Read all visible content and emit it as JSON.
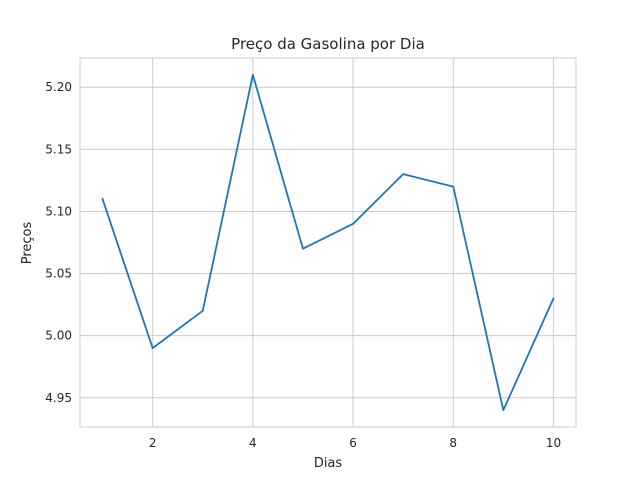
{
  "chart_data": {
    "type": "line",
    "title": "Preço da Gasolina por Dia",
    "xlabel": "Dias",
    "ylabel": "Preços",
    "x": [
      1,
      2,
      3,
      4,
      5,
      6,
      7,
      8,
      9,
      10
    ],
    "series": [
      {
        "values": [
          5.11,
          4.99,
          5.02,
          5.21,
          5.07,
          5.09,
          5.13,
          5.12,
          4.94,
          5.03
        ],
        "color": "#1f77b4"
      }
    ],
    "xlim": [
      0.55,
      10.45
    ],
    "ylim": [
      4.9265,
      5.2235
    ],
    "xticks": [
      2,
      4,
      6,
      8,
      10
    ],
    "xtick_labels": [
      "2",
      "4",
      "6",
      "8",
      "10"
    ],
    "yticks": [
      4.95,
      5.0,
      5.05,
      5.1,
      5.15,
      5.2
    ],
    "ytick_labels": [
      "4.95",
      "5.00",
      "5.05",
      "5.10",
      "5.15",
      "5.20"
    ],
    "grid": true,
    "colors": {
      "grid": "#cccccc",
      "axes_edge": "#cccccc",
      "text": "#262626",
      "background": "#ffffff"
    }
  }
}
